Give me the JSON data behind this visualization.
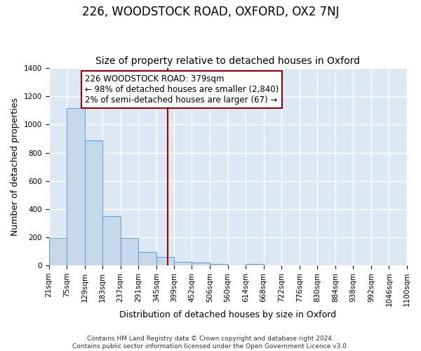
{
  "title": "226, WOODSTOCK ROAD, OXFORD, OX2 7NJ",
  "subtitle": "Size of property relative to detached houses in Oxford",
  "xlabel": "Distribution of detached houses by size in Oxford",
  "ylabel": "Number of detached properties",
  "bar_color": "#c6d9ea",
  "bar_edge_color": "#5b9bd5",
  "background_color": "#dce9f5",
  "fig_background_color": "#ffffff",
  "grid_color": "#ffffff",
  "bins": [
    "21sqm",
    "75sqm",
    "129sqm",
    "183sqm",
    "237sqm",
    "291sqm",
    "345sqm",
    "399sqm",
    "452sqm",
    "506sqm",
    "560sqm",
    "614sqm",
    "668sqm",
    "722sqm",
    "776sqm",
    "830sqm",
    "884sqm",
    "938sqm",
    "992sqm",
    "1046sqm",
    "1100sqm"
  ],
  "bin_values": [
    21,
    75,
    129,
    183,
    237,
    291,
    345,
    399,
    452,
    506,
    560,
    614,
    668,
    722,
    776,
    830,
    884,
    938,
    992,
    1046,
    1100
  ],
  "counts": [
    195,
    1115,
    885,
    350,
    195,
    95,
    60,
    25,
    20,
    10,
    0,
    10,
    0,
    0,
    0,
    0,
    0,
    0,
    0,
    0
  ],
  "property_value": 379,
  "vline_color": "#990000",
  "annotation_title": "226 WOODSTOCK ROAD: 379sqm",
  "annotation_line1": "← 98% of detached houses are smaller (2,840)",
  "annotation_line2": "2% of semi-detached houses are larger (67) →",
  "annotation_box_color": "#ffffff",
  "annotation_border_color": "#990000",
  "ylim": [
    0,
    1400
  ],
  "yticks": [
    0,
    200,
    400,
    600,
    800,
    1000,
    1200,
    1400
  ],
  "footer_line1": "Contains HM Land Registry data © Crown copyright and database right 2024.",
  "footer_line2": "Contains public sector information licensed under the Open Government Licence v3.0.",
  "title_fontsize": 12,
  "subtitle_fontsize": 10,
  "label_fontsize": 9,
  "tick_fontsize": 7.5,
  "annotation_fontsize": 8.5,
  "footer_fontsize": 6.5
}
